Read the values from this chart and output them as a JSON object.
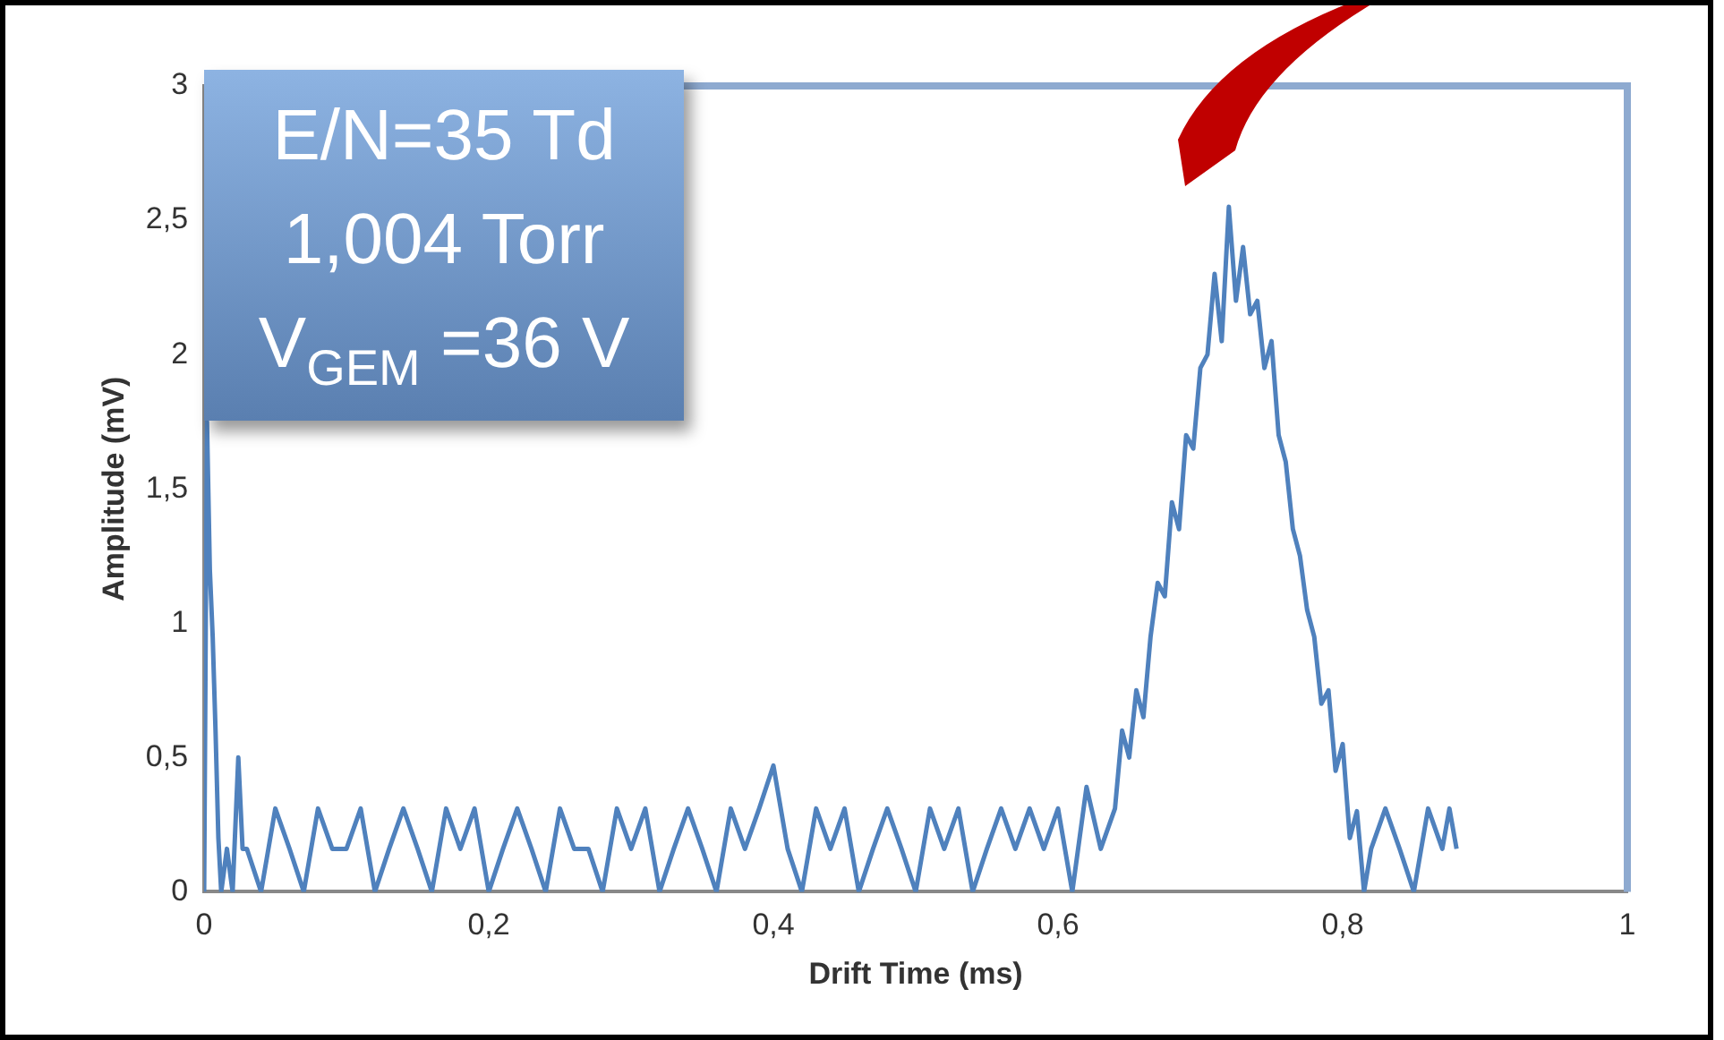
{
  "chart_data": {
    "type": "line",
    "xlabel": "Drift Time (ms)",
    "ylabel": "Amplitude (mV)",
    "annotations": [
      "E/N=35 Td",
      "1,004 Torr",
      "V$_{GEM}$ =36 V"
    ],
    "xlim": [
      0,
      1
    ],
    "xticks": [
      0,
      {
        "value": 0.2,
        "label": "0,2"
      },
      {
        "value": 0.4,
        "label": "0,4"
      },
      {
        "value": 0.6,
        "label": "0,6"
      },
      {
        "value": 0.8,
        "label": "0,8"
      },
      1
    ],
    "ylim": [
      0,
      3
    ],
    "yticks": [
      0,
      {
        "value": 0.5,
        "label": "0,5"
      },
      1,
      {
        "value": 1.5,
        "label": "1,5"
      },
      2,
      {
        "value": 2.5,
        "label": "2,5"
      },
      3
    ],
    "series": [
      {
        "color": "#4f81bd",
        "x": [
          0,
          0.002,
          0.004,
          0.006,
          0.008,
          0.01,
          0.012,
          0.016,
          0.02,
          0.024,
          0.027,
          0.03,
          0.04,
          0.05,
          0.06,
          0.07,
          0.08,
          0.09,
          0.1,
          0.11,
          0.12,
          0.13,
          0.14,
          0.15,
          0.16,
          0.17,
          0.18,
          0.19,
          0.2,
          0.21,
          0.22,
          0.23,
          0.24,
          0.25,
          0.26,
          0.27,
          0.28,
          0.29,
          0.3,
          0.31,
          0.32,
          0.33,
          0.34,
          0.35,
          0.36,
          0.37,
          0.38,
          0.39,
          0.4,
          0.41,
          0.42,
          0.43,
          0.44,
          0.45,
          0.46,
          0.47,
          0.48,
          0.49,
          0.5,
          0.51,
          0.52,
          0.53,
          0.54,
          0.55,
          0.56,
          0.57,
          0.58,
          0.59,
          0.6,
          0.61,
          0.62,
          0.63,
          0.64,
          0.645,
          0.65,
          0.655,
          0.66,
          0.665,
          0.67,
          0.675,
          0.68,
          0.685,
          0.69,
          0.695,
          0.7,
          0.705,
          0.71,
          0.715,
          0.72,
          0.725,
          0.73,
          0.735,
          0.74,
          0.745,
          0.75,
          0.755,
          0.76,
          0.765,
          0.77,
          0.775,
          0.78,
          0.785,
          0.79,
          0.795,
          0.8,
          0.805,
          0.81,
          0.815,
          0.82,
          0.83,
          0.84,
          0.85,
          0.86,
          0.87,
          0.875,
          0.88
        ],
        "values": [
          0,
          1.75,
          1.2,
          0.95,
          0.6,
          0.2,
          0,
          0.16,
          0,
          0.5,
          0.16,
          0.16,
          0,
          0.31,
          0.16,
          0,
          0.31,
          0.16,
          0.16,
          0.31,
          0,
          0.16,
          0.31,
          0.16,
          0,
          0.31,
          0.16,
          0.31,
          0,
          0.16,
          0.31,
          0.16,
          0,
          0.31,
          0.16,
          0.16,
          0,
          0.31,
          0.16,
          0.31,
          0,
          0.16,
          0.31,
          0.16,
          0,
          0.31,
          0.16,
          0.31,
          0.47,
          0.16,
          0,
          0.31,
          0.16,
          0.31,
          0,
          0.16,
          0.31,
          0.16,
          0,
          0.31,
          0.16,
          0.31,
          0,
          0.16,
          0.31,
          0.16,
          0.31,
          0.16,
          0.31,
          0,
          0.39,
          0.16,
          0.31,
          0.6,
          0.5,
          0.75,
          0.65,
          0.95,
          1.15,
          1.1,
          1.45,
          1.35,
          1.7,
          1.65,
          1.95,
          2,
          2.3,
          2.05,
          2.55,
          2.2,
          2.4,
          2.15,
          2.2,
          1.95,
          2.05,
          1.7,
          1.6,
          1.35,
          1.25,
          1.05,
          0.95,
          0.7,
          0.75,
          0.45,
          0.55,
          0.2,
          0.3,
          0,
          0.16,
          0.31,
          0.16,
          0,
          0.31,
          0.16,
          0.31,
          0.16
        ]
      }
    ]
  }
}
